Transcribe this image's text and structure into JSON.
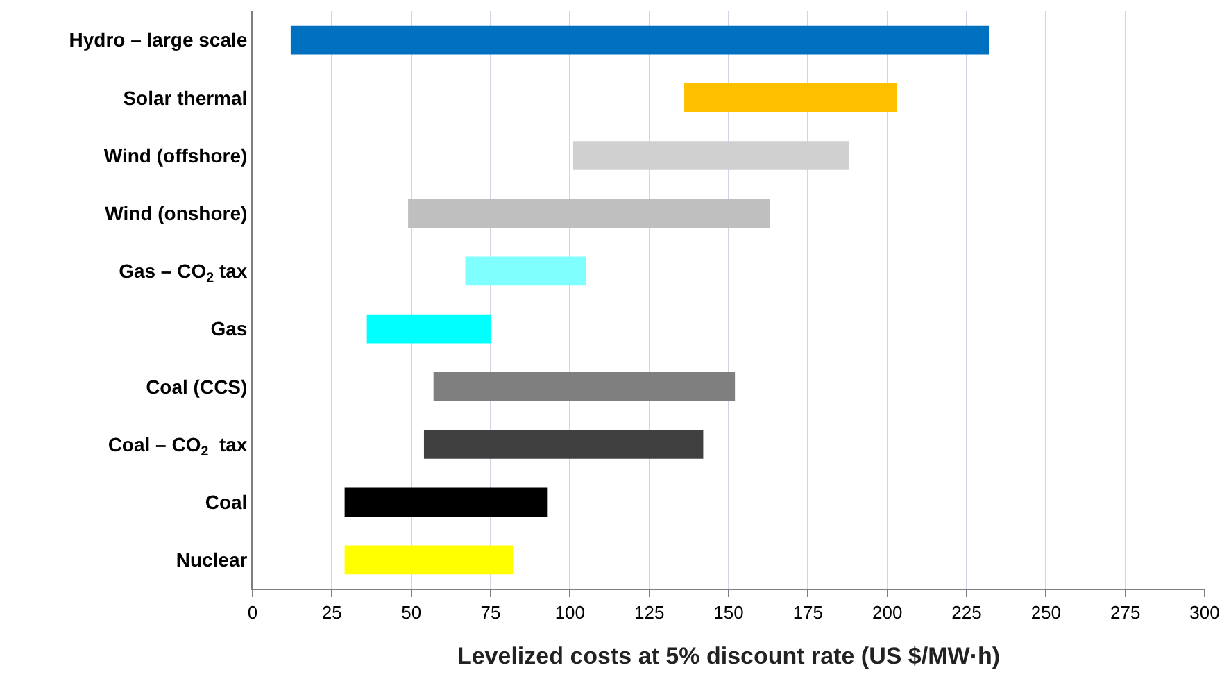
{
  "chart_data": {
    "type": "bar",
    "orientation": "horizontal",
    "xlabel": "Levelized costs at 5% discount rate (US $/MW·h)",
    "categories": [
      "Hydro – large scale",
      "Solar thermal",
      "Wind (offshore)",
      "Wind (onshore)",
      "Gas – CO$_{2}$ tax",
      "Gas",
      "Coal (CCS)",
      "Coal – CO$_{2}$  tax",
      "Coal",
      "Nuclear"
    ],
    "base": [
      12,
      136,
      101,
      49,
      67,
      36,
      57,
      54,
      29,
      29
    ],
    "values": [
      220,
      67,
      87,
      114,
      38,
      39,
      95,
      88,
      64,
      53
    ],
    "colors": [
      "#0070c0",
      "#ffc000",
      "#d0d0d0",
      "#bfbfbf",
      "#80ffff",
      "#00ffff",
      "#7f7f7f",
      "#404040",
      "#000000",
      "#ffff00"
    ],
    "xlim": [
      0,
      300
    ],
    "xticks": [
      0,
      25,
      50,
      75,
      100,
      125,
      150,
      175,
      200,
      225,
      250,
      275,
      300
    ],
    "grid": "x",
    "legend": false
  }
}
